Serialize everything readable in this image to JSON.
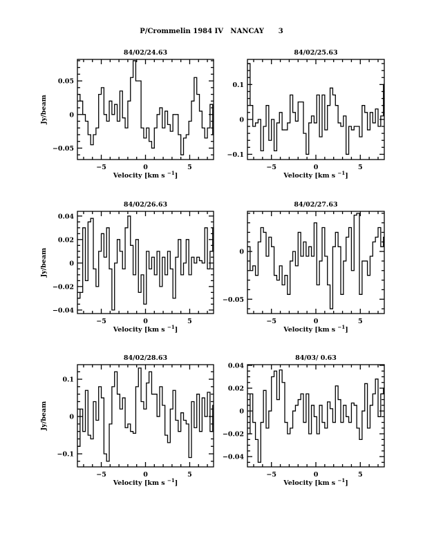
{
  "chart_data": {
    "type": "line",
    "title": "P/Crommelin 1984 IV   NANCAY      3",
    "xlabel": "Velocity [km s",
    "xlabel_sup": "-1",
    "xlabel_end": "]",
    "ylabel": "Jy/beam",
    "xlim": [
      -7.7,
      7.7
    ],
    "xticks": [
      -5,
      0,
      5
    ],
    "xtick_labels": [
      "-5",
      "0",
      "5"
    ],
    "panels": [
      {
        "title": "84/02/24.63",
        "ylim": [
          -0.067,
          0.082
        ],
        "yticks": [
          -0.05,
          0,
          0.05
        ],
        "ytick_labels": [
          "-0.05",
          "0",
          "0.05"
        ],
        "yminor": 0.01,
        "show_ylabel": true,
        "velocity_start": -7.7,
        "channel_width": 0.3,
        "values": [
          0.03,
          0.02,
          0,
          -0.01,
          -0.03,
          -0.045,
          -0.03,
          -0.02,
          0.03,
          0.04,
          0.0,
          -0.01,
          0.02,
          0.0,
          0.015,
          -0.01,
          0.035,
          -0.005,
          -0.02,
          0.02,
          0.055,
          0.08,
          0.05,
          0.05,
          -0.02,
          -0.035,
          -0.02,
          -0.04,
          -0.05,
          -0.02,
          0.0,
          0.01,
          -0.02,
          0.005,
          -0.015,
          -0.025,
          0.0,
          0.0,
          -0.03,
          -0.06,
          -0.035,
          -0.03,
          -0.01,
          0.02,
          0.055,
          0.03,
          0.005,
          -0.02,
          -0.035,
          -0.02,
          0.015,
          -0.03
        ]
      },
      {
        "title": "84/02/25.63",
        "ylim": [
          -0.115,
          0.172
        ],
        "yticks": [
          -0.1,
          0,
          0.1
        ],
        "ytick_labels": [
          "-0.1",
          "0",
          "0.1"
        ],
        "yminor": 0.02,
        "show_ylabel": false,
        "velocity_start": -7.7,
        "channel_width": 0.3,
        "values": [
          0.16,
          0.04,
          -0.02,
          -0.01,
          0.0,
          -0.09,
          -0.02,
          0.04,
          -0.06,
          0.0,
          -0.09,
          -0.01,
          0.02,
          -0.03,
          -0.03,
          -0.01,
          0.07,
          0.02,
          -0.005,
          0.05,
          0.05,
          -0.04,
          -0.1,
          -0.01,
          0.01,
          -0.01,
          0.07,
          -0.05,
          0.07,
          -0.03,
          0.04,
          0.09,
          0.07,
          0.04,
          -0.01,
          -0.02,
          0.01,
          -0.1,
          -0.02,
          -0.03,
          -0.02,
          -0.02,
          -0.05,
          0.04,
          0.02,
          -0.03,
          0.02,
          -0.01,
          0.03,
          -0.02,
          0.01,
          0.1
        ]
      },
      {
        "title": "84/02/26.63",
        "ylim": [
          -0.043,
          0.044
        ],
        "yticks": [
          -0.04,
          -0.02,
          0,
          0.02,
          0.04
        ],
        "ytick_labels": [
          "-0.04",
          "-0.02",
          "0",
          "0.02",
          "0.04"
        ],
        "yminor": 0.005,
        "show_ylabel": true,
        "velocity_start": -7.7,
        "channel_width": 0.3,
        "values": [
          -0.03,
          -0.025,
          0.03,
          -0.015,
          0.035,
          0.038,
          -0.005,
          -0.02,
          0.01,
          0.025,
          0.005,
          0.03,
          -0.005,
          -0.04,
          0.0,
          0.02,
          0.01,
          -0.005,
          0.03,
          0.04,
          0.015,
          -0.01,
          0.02,
          -0.025,
          -0.01,
          -0.035,
          0.01,
          -0.005,
          0.005,
          -0.01,
          0.01,
          -0.02,
          0.005,
          -0.01,
          0.01,
          -0.005,
          -0.03,
          0.005,
          0.02,
          -0.01,
          0.0,
          0.02,
          -0.01,
          0.005,
          0.0,
          0.005,
          0.002,
          0.0,
          0.03,
          -0.005,
          0.01,
          0.03
        ]
      },
      {
        "title": "84/02/27.63",
        "ylim": [
          -0.065,
          0.042
        ],
        "yticks": [
          -0.05,
          0
        ],
        "ytick_labels": [
          "-0.05",
          "0"
        ],
        "yminor": 0.01,
        "show_ylabel": false,
        "velocity_start": -7.7,
        "channel_width": 0.3,
        "values": [
          0.005,
          -0.02,
          -0.015,
          -0.025,
          0.01,
          0.025,
          0.02,
          -0.005,
          0.015,
          0.005,
          -0.025,
          -0.03,
          -0.015,
          -0.035,
          -0.025,
          -0.045,
          -0.01,
          0.0,
          -0.015,
          0.02,
          -0.005,
          0.01,
          -0.005,
          0.005,
          -0.005,
          0.03,
          -0.035,
          -0.01,
          0.025,
          -0.005,
          -0.035,
          -0.06,
          0.005,
          0.02,
          0.005,
          -0.045,
          -0.01,
          0.015,
          0.025,
          -0.02,
          0.038,
          0.04,
          -0.045,
          -0.01,
          -0.01,
          -0.025,
          -0.005,
          0.01,
          0.015,
          0.025,
          0.005,
          0.015
        ]
      },
      {
        "title": "84/02/28.63",
        "ylim": [
          -0.135,
          0.139
        ],
        "yticks": [
          -0.1,
          0,
          0.1
        ],
        "ytick_labels": [
          "-0.1",
          "0",
          "0.1"
        ],
        "yminor": 0.02,
        "show_ylabel": true,
        "velocity_start": -7.7,
        "channel_width": 0.3,
        "values": [
          -0.08,
          0.02,
          -0.04,
          0.07,
          -0.05,
          -0.06,
          0.04,
          -0.01,
          0.08,
          0.05,
          -0.1,
          -0.12,
          -0.02,
          0.08,
          0.12,
          0.06,
          0.02,
          0.05,
          -0.03,
          -0.02,
          -0.04,
          -0.045,
          0.08,
          0.13,
          0.04,
          0.02,
          0.09,
          0.12,
          0.06,
          0.06,
          0.0,
          0.08,
          0.03,
          -0.05,
          -0.07,
          0.02,
          0.07,
          -0.01,
          -0.04,
          0.01,
          -0.01,
          -0.02,
          -0.11,
          0.04,
          -0.03,
          0.06,
          -0.04,
          0.05,
          0.0,
          0.065,
          -0.04,
          0.03
        ]
      },
      {
        "title": "84/03/ 0.63",
        "ylim": [
          -0.049,
          0.0406
        ],
        "yticks": [
          -0.04,
          -0.02,
          0,
          0.02,
          0.04
        ],
        "ytick_labels": [
          "-0.04",
          "-0.02",
          "0",
          "0.02",
          "0.04"
        ],
        "yminor": 0.005,
        "show_ylabel": false,
        "velocity_start": -7.7,
        "channel_width": 0.3,
        "values": [
          -0.02,
          0.015,
          -0.01,
          -0.025,
          -0.045,
          -0.01,
          0.018,
          -0.015,
          0.0,
          0.03,
          0.035,
          0.01,
          0.036,
          0.025,
          -0.01,
          -0.02,
          -0.015,
          0.0,
          0.005,
          0.01,
          0.015,
          -0.01,
          0.015,
          -0.02,
          0.005,
          -0.005,
          -0.02,
          0.005,
          -0.01,
          -0.015,
          0.008,
          0.002,
          -0.01,
          0.022,
          0.01,
          -0.01,
          0.005,
          -0.005,
          -0.01,
          0.007,
          0.005,
          -0.015,
          -0.025,
          0.0,
          0.024,
          -0.015,
          0.005,
          0.015,
          0.028,
          -0.005,
          0.015,
          0.02
        ]
      }
    ]
  }
}
